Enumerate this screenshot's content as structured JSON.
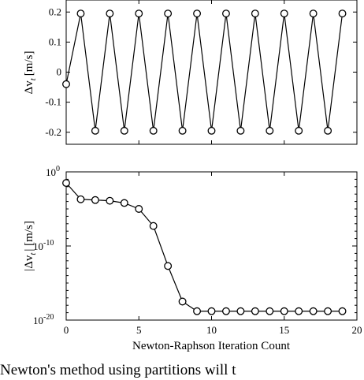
{
  "chart_data": [
    {
      "type": "line",
      "ylabel_main": "Δv",
      "ylabel_sub": "t",
      "ylabel_unit": "[m/s]",
      "xlim": [
        0,
        20
      ],
      "ylim": [
        -0.24,
        0.24
      ],
      "xticks": [
        0,
        5,
        10,
        15,
        20
      ],
      "yticks": [
        0.2,
        0.1,
        0,
        -0.1,
        -0.2
      ],
      "ytick_labels": [
        "0.2",
        "0.1",
        "0",
        "-0.1",
        "-0.2"
      ],
      "x": [
        0,
        1,
        2,
        3,
        4,
        5,
        6,
        7,
        8,
        9,
        10,
        11,
        12,
        13,
        14,
        15,
        16,
        17,
        18,
        19
      ],
      "values": [
        -0.04,
        0.195,
        -0.195,
        0.195,
        -0.195,
        0.195,
        -0.195,
        0.195,
        -0.195,
        0.195,
        -0.195,
        0.195,
        -0.195,
        0.195,
        -0.195,
        0.195,
        -0.195,
        0.195,
        -0.195,
        0.195
      ]
    },
    {
      "type": "line",
      "scale": "log",
      "xlabel": "Newton-Raphson Iteration Count",
      "ylabel_main": "|Δv",
      "ylabel_sub": "t",
      "ylabel_unit": "| [m/s]",
      "xlim": [
        0,
        20
      ],
      "ylim_exp": [
        -20,
        0
      ],
      "xticks": [
        0,
        5,
        10,
        15,
        20
      ],
      "xtick_labels": [
        "0",
        "5",
        "10",
        "15",
        "20"
      ],
      "yticks_exp": [
        0,
        -10,
        -20
      ],
      "ytick_labels": [
        "10",
        "10",
        "10"
      ],
      "ytick_exponents": [
        "0",
        "-10",
        "-20"
      ],
      "x": [
        0,
        1,
        2,
        3,
        4,
        5,
        6,
        7,
        8,
        9,
        10,
        11,
        12,
        13,
        14,
        15,
        16,
        17,
        18,
        19
      ],
      "log10_values": [
        -1.5,
        -3.7,
        -3.8,
        -3.9,
        -4.2,
        -5.0,
        -7.3,
        -12.7,
        -17.5,
        -18.8,
        -18.8,
        -18.8,
        -18.8,
        -18.8,
        -18.8,
        -18.8,
        -18.8,
        -18.8,
        -18.8,
        -18.8
      ]
    }
  ],
  "caption": "Newton's method using partitions will t"
}
